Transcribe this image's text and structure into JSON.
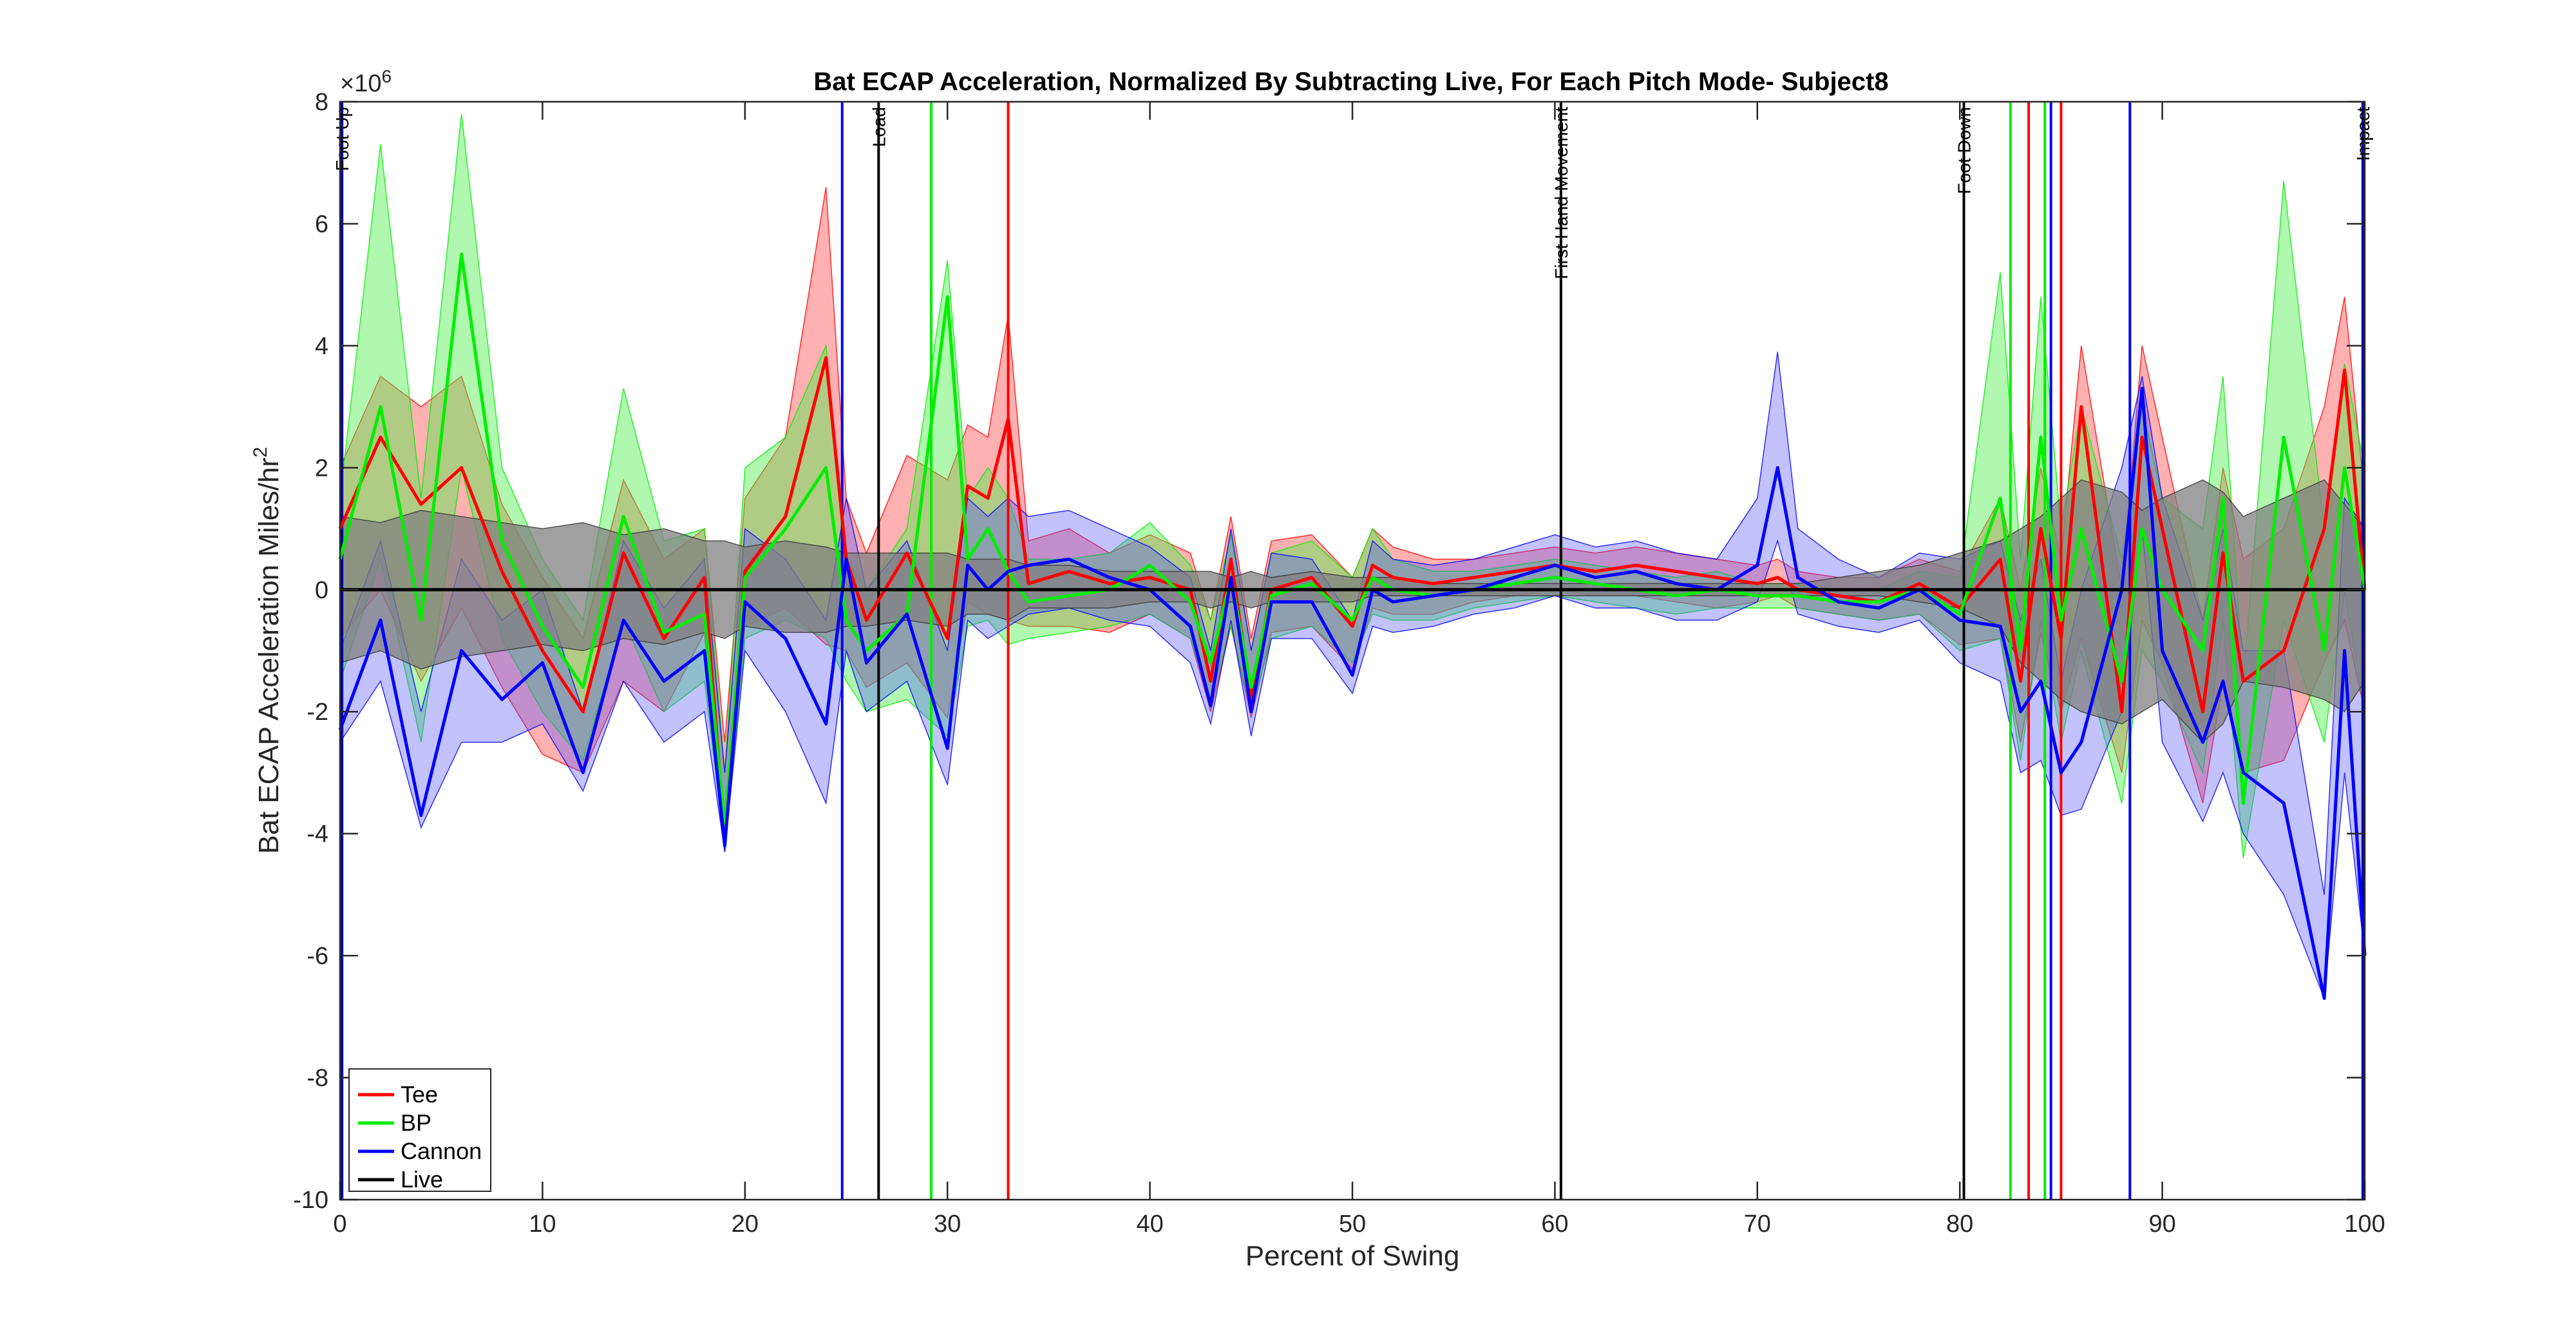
{
  "chart_data": {
    "type": "line",
    "title": "Bat ECAP Acceleration, Normalized By Subtracting Live, For Each Pitch Mode- Subject8",
    "xlabel": "Percent of Swing",
    "ylabel_main": "Bat ECAP Acceleration Miles/hr",
    "ylabel_sup": "2",
    "y_exponent_base": "×10",
    "y_exponent_power": "6",
    "xlim": [
      0,
      100
    ],
    "ylim": [
      -10,
      8
    ],
    "xticks": [
      "0",
      "10",
      "20",
      "30",
      "40",
      "50",
      "60",
      "70",
      "80",
      "90",
      "100"
    ],
    "yticks": [
      "8",
      "6",
      "4",
      "2",
      "0",
      "-2",
      "-4",
      "-6",
      "-8",
      "-10"
    ],
    "xtick_values": [
      0,
      10,
      20,
      30,
      40,
      50,
      60,
      70,
      80,
      90,
      100
    ],
    "ytick_values": [
      8,
      6,
      4,
      2,
      0,
      -2,
      -4,
      -6,
      -8,
      -10
    ],
    "grid": false,
    "legend_position": "bottom-left",
    "legend": [
      {
        "name": "Tee",
        "color": "#ff0000"
      },
      {
        "name": "BP",
        "color": "#00ee00"
      },
      {
        "name": "Cannon",
        "color": "#0000ff"
      },
      {
        "name": "Live",
        "color": "#000000"
      }
    ],
    "events": [
      {
        "label": "Foot Up",
        "x": 0.1,
        "color": "#0000aa"
      },
      {
        "label": "Load",
        "x": 26.6,
        "color": "#000000"
      },
      {
        "label": "First Hand Movement",
        "x": 60.3,
        "color": "#000000"
      },
      {
        "label": "Foot Down",
        "x": 80.2,
        "color": "#000000"
      },
      {
        "label": "Impact",
        "x": 99.9,
        "color": "#0000aa"
      }
    ],
    "mode_lines": [
      {
        "x": 24.8,
        "color": "#0000ff"
      },
      {
        "x": 29.2,
        "color": "#00ee00"
      },
      {
        "x": 33.0,
        "color": "#ff0000"
      },
      {
        "x": 82.5,
        "color": "#00ee00"
      },
      {
        "x": 83.4,
        "color": "#ff0000"
      },
      {
        "x": 84.2,
        "color": "#00ee00"
      },
      {
        "x": 84.5,
        "color": "#0000ff"
      },
      {
        "x": 85.0,
        "color": "#ff0000"
      },
      {
        "x": 88.4,
        "color": "#0000ff"
      }
    ],
    "x": [
      0,
      2,
      4,
      6,
      8,
      10,
      12,
      14,
      16,
      18,
      19,
      20,
      22,
      24,
      25,
      26,
      28,
      30,
      31,
      32,
      33,
      34,
      36,
      38,
      40,
      42,
      43,
      44,
      45,
      46,
      48,
      50,
      51,
      52,
      54,
      56,
      58,
      60,
      62,
      64,
      66,
      68,
      70,
      71,
      72,
      74,
      76,
      78,
      80,
      82,
      83,
      84,
      85,
      86,
      88,
      89,
      90,
      92,
      93,
      94,
      96,
      98,
      99,
      100
    ],
    "series": [
      {
        "name": "Tee",
        "color": "#ff0000",
        "values": [
          1.0,
          2.5,
          1.4,
          2.0,
          0.3,
          -1.0,
          -2.0,
          0.6,
          -0.8,
          0.2,
          -4.1,
          0.3,
          1.2,
          3.8,
          0.5,
          -0.5,
          0.6,
          -0.8,
          1.7,
          1.5,
          2.8,
          0.1,
          0.3,
          0.1,
          0.2,
          0.0,
          -1.5,
          0.5,
          -1.8,
          0.0,
          0.2,
          -0.6,
          0.4,
          0.2,
          0.1,
          0.2,
          0.3,
          0.4,
          0.3,
          0.4,
          0.3,
          0.2,
          0.1,
          0.2,
          0.0,
          -0.1,
          -0.2,
          0.1,
          -0.3,
          0.5,
          -1.5,
          1.0,
          -0.8,
          3.0,
          -2.0,
          2.5,
          1.0,
          -2.0,
          0.6,
          -1.5,
          -1.0,
          1.0,
          3.6,
          0.0
        ],
        "band_lo": [
          -0.8,
          0.0,
          -1.5,
          -0.3,
          -1.6,
          -2.7,
          -3.0,
          -1.5,
          -2.0,
          -0.7,
          -4.3,
          -0.6,
          -0.3,
          -0.9,
          -1.0,
          -1.6,
          -1.2,
          -2.1,
          -0.2,
          -0.4,
          -0.5,
          -0.6,
          -0.6,
          -0.7,
          -0.4,
          -0.8,
          -2.0,
          -0.6,
          -2.1,
          -0.7,
          -0.6,
          -1.3,
          -0.3,
          -0.4,
          -0.4,
          -0.2,
          -0.1,
          0.0,
          -0.1,
          -0.1,
          -0.2,
          -0.3,
          -0.2,
          -0.1,
          -0.3,
          -0.4,
          -0.5,
          -0.4,
          -0.9,
          -0.8,
          -2.5,
          -0.7,
          -2.0,
          -0.8,
          -3.0,
          -0.5,
          -1.2,
          -3.5,
          -1.5,
          -3.0,
          -2.8,
          -1.2,
          -0.5,
          -2.0
        ],
        "band_hi": [
          2.0,
          3.5,
          3.0,
          3.5,
          1.4,
          0.2,
          -0.8,
          1.8,
          0.5,
          1.0,
          -2.5,
          1.5,
          2.5,
          6.6,
          1.5,
          0.6,
          2.2,
          1.8,
          2.7,
          2.5,
          4.5,
          0.8,
          1.0,
          0.6,
          0.9,
          0.6,
          -0.5,
          1.2,
          -0.8,
          0.8,
          0.9,
          0.2,
          1.0,
          0.7,
          0.5,
          0.5,
          0.6,
          0.7,
          0.6,
          0.7,
          0.6,
          0.5,
          0.4,
          0.5,
          0.3,
          0.2,
          0.2,
          0.5,
          0.3,
          1.5,
          0.0,
          2.0,
          0.5,
          4.0,
          0.0,
          4.0,
          2.5,
          -0.5,
          2.0,
          0.5,
          1.0,
          3.0,
          4.8,
          1.5
        ]
      },
      {
        "name": "BP",
        "color": "#00ee00",
        "values": [
          0.5,
          3.0,
          -0.5,
          5.5,
          0.8,
          -0.6,
          -1.6,
          1.2,
          -0.7,
          -0.4,
          -3.9,
          0.2,
          1.0,
          2.0,
          -0.5,
          -1.0,
          -0.4,
          4.8,
          0.5,
          1.0,
          0.3,
          -0.2,
          -0.1,
          0.0,
          0.4,
          -0.2,
          -1.2,
          0.2,
          -1.6,
          -0.1,
          0.1,
          -0.5,
          0.2,
          0.0,
          -0.1,
          0.0,
          0.1,
          0.2,
          0.1,
          0.0,
          -0.1,
          0.0,
          -0.1,
          -0.1,
          -0.1,
          -0.2,
          -0.2,
          0.0,
          -0.4,
          1.5,
          -1.0,
          2.5,
          -0.5,
          1.0,
          -1.5,
          1.0,
          0.0,
          -1.0,
          1.5,
          -3.5,
          2.5,
          -1.0,
          2.0,
          0.0
        ],
        "band_lo": [
          -1.5,
          0.5,
          -2.5,
          2.0,
          -0.8,
          -2.0,
          -2.8,
          -0.5,
          -2.0,
          -1.5,
          -4.2,
          -0.8,
          -0.5,
          -0.8,
          -1.5,
          -2.0,
          -1.8,
          -2.4,
          -0.6,
          -0.5,
          -0.9,
          -0.8,
          -0.7,
          -0.6,
          -0.4,
          -0.8,
          -1.8,
          -0.6,
          -2.0,
          -0.8,
          -0.6,
          -1.2,
          -0.4,
          -0.5,
          -0.5,
          -0.3,
          -0.2,
          -0.1,
          -0.2,
          -0.3,
          -0.4,
          -0.3,
          -0.3,
          -0.3,
          -0.3,
          -0.4,
          -0.5,
          -0.4,
          -1.0,
          -0.8,
          -2.8,
          -0.5,
          -2.5,
          -1.0,
          -3.5,
          -1.0,
          -1.5,
          -3.0,
          -0.5,
          -4.4,
          -0.5,
          -2.5,
          0.0,
          -2.0
        ],
        "band_hi": [
          1.5,
          7.3,
          1.5,
          7.8,
          2.0,
          0.5,
          -0.5,
          3.3,
          0.8,
          1.0,
          -3.0,
          2.0,
          2.5,
          4.0,
          0.5,
          0.0,
          1.0,
          5.4,
          1.5,
          2.0,
          1.5,
          0.5,
          0.5,
          0.6,
          1.1,
          0.4,
          -0.5,
          0.9,
          -1.0,
          0.6,
          0.8,
          0.2,
          1.0,
          0.5,
          0.3,
          0.3,
          0.4,
          0.5,
          0.4,
          0.3,
          0.2,
          0.3,
          0.1,
          0.1,
          0.1,
          0.0,
          0.0,
          0.3,
          0.2,
          5.2,
          0.5,
          4.8,
          1.0,
          3.0,
          0.5,
          3.0,
          1.5,
          1.0,
          3.5,
          -1.5,
          6.7,
          1.0,
          3.7,
          2.0
        ]
      },
      {
        "name": "Cannon",
        "color": "#0000ff",
        "values": [
          -2.3,
          -0.5,
          -3.7,
          -1.0,
          -1.8,
          -1.2,
          -3.0,
          -0.5,
          -1.5,
          -1.0,
          -4.2,
          -0.2,
          -0.8,
          -2.2,
          0.5,
          -1.2,
          -0.4,
          -2.6,
          0.4,
          0.0,
          0.3,
          0.4,
          0.5,
          0.2,
          0.0,
          -0.6,
          -1.9,
          0.2,
          -2.0,
          -0.2,
          -0.2,
          -1.4,
          0.0,
          -0.2,
          -0.1,
          0.0,
          0.2,
          0.4,
          0.2,
          0.3,
          0.1,
          0.0,
          0.4,
          2.0,
          0.2,
          -0.2,
          -0.3,
          0.0,
          -0.5,
          -0.6,
          -2.0,
          -1.5,
          -3.0,
          -2.5,
          0.0,
          3.3,
          -1.0,
          -2.5,
          -1.5,
          -3.0,
          -3.5,
          -6.7,
          -1.0,
          -6.0
        ],
        "band_lo": [
          -2.5,
          -1.5,
          -3.9,
          -2.5,
          -2.5,
          -2.2,
          -3.3,
          -1.5,
          -2.5,
          -2.0,
          -4.3,
          -1.0,
          -2.0,
          -3.5,
          -1.0,
          -2.0,
          -1.5,
          -3.2,
          -0.5,
          -0.8,
          -0.6,
          -0.4,
          -0.3,
          -0.5,
          -0.6,
          -1.2,
          -2.2,
          -0.5,
          -2.4,
          -0.8,
          -0.8,
          -1.7,
          -0.6,
          -0.7,
          -0.6,
          -0.4,
          -0.3,
          -0.1,
          -0.3,
          -0.3,
          -0.5,
          -0.5,
          -0.2,
          0.8,
          -0.4,
          -0.6,
          -0.7,
          -0.5,
          -1.2,
          -1.5,
          -3.0,
          -2.8,
          -3.7,
          -3.6,
          -2.0,
          1.0,
          -2.5,
          -3.8,
          -3.0,
          -4.0,
          -5.0,
          -6.7,
          -3.0,
          -6.0
        ],
        "band_hi": [
          -1.0,
          0.8,
          -2.0,
          0.5,
          -0.5,
          0.0,
          -2.0,
          0.8,
          -0.3,
          0.5,
          -3.0,
          1.0,
          0.5,
          -0.5,
          1.5,
          0.0,
          0.8,
          -1.0,
          1.5,
          1.2,
          1.5,
          1.2,
          1.3,
          1.0,
          0.7,
          0.2,
          -1.0,
          1.0,
          -1.0,
          0.6,
          0.5,
          -0.5,
          0.8,
          0.5,
          0.4,
          0.5,
          0.7,
          0.9,
          0.7,
          0.8,
          0.6,
          0.5,
          1.5,
          3.9,
          1.0,
          0.5,
          0.2,
          0.6,
          0.5,
          0.8,
          -0.5,
          0.5,
          -1.5,
          0.0,
          2.0,
          3.5,
          1.5,
          -0.5,
          1.0,
          -1.0,
          -1.0,
          -5.0,
          1.5,
          1.0
        ]
      },
      {
        "name": "Live",
        "color": "#000000",
        "values": [
          0,
          0,
          0,
          0,
          0,
          0,
          0,
          0,
          0,
          0,
          0,
          0,
          0,
          0,
          0,
          0,
          0,
          0,
          0,
          0,
          0,
          0,
          0,
          0,
          0,
          0,
          0,
          0,
          0,
          0,
          0,
          0,
          0,
          0,
          0,
          0,
          0,
          0,
          0,
          0,
          0,
          0,
          0,
          0,
          0,
          0,
          0,
          0,
          0,
          0,
          0,
          0,
          0,
          0,
          0,
          0,
          0,
          0,
          0,
          0,
          0,
          0,
          0,
          0
        ],
        "band_lo": [
          -1.2,
          -1.0,
          -1.3,
          -1.1,
          -1.0,
          -0.9,
          -1.0,
          -0.8,
          -0.9,
          -0.7,
          -0.8,
          -0.6,
          -0.7,
          -0.7,
          -0.6,
          -0.6,
          -0.5,
          -0.6,
          -0.4,
          -0.4,
          -0.5,
          -0.3,
          -0.3,
          -0.3,
          -0.2,
          -0.2,
          -0.3,
          -0.2,
          -0.3,
          -0.2,
          -0.2,
          -0.2,
          -0.1,
          -0.1,
          -0.1,
          -0.1,
          -0.1,
          -0.1,
          -0.1,
          -0.1,
          -0.1,
          -0.1,
          -0.1,
          -0.1,
          -0.1,
          -0.1,
          -0.1,
          -0.2,
          -0.3,
          -0.6,
          -1.2,
          -1.5,
          -1.8,
          -2.0,
          -2.2,
          -2.0,
          -1.8,
          -2.5,
          -2.2,
          -1.5,
          -1.6,
          -1.8,
          -2.0,
          -1.5
        ],
        "band_hi": [
          1.2,
          1.1,
          1.3,
          1.2,
          1.1,
          1.0,
          1.1,
          0.9,
          1.0,
          0.8,
          0.8,
          0.7,
          0.8,
          0.7,
          0.6,
          0.6,
          0.6,
          0.6,
          0.5,
          0.5,
          0.5,
          0.4,
          0.4,
          0.3,
          0.3,
          0.3,
          0.3,
          0.2,
          0.3,
          0.2,
          0.3,
          0.2,
          0.2,
          0.2,
          0.1,
          0.1,
          0.1,
          0.1,
          0.1,
          0.1,
          0.1,
          0.1,
          0.1,
          0.1,
          0.1,
          0.2,
          0.3,
          0.4,
          0.6,
          0.8,
          1.0,
          1.2,
          1.5,
          1.8,
          1.6,
          1.3,
          1.5,
          1.8,
          1.6,
          1.2,
          1.5,
          1.8,
          1.4,
          1.0
        ]
      }
    ]
  }
}
